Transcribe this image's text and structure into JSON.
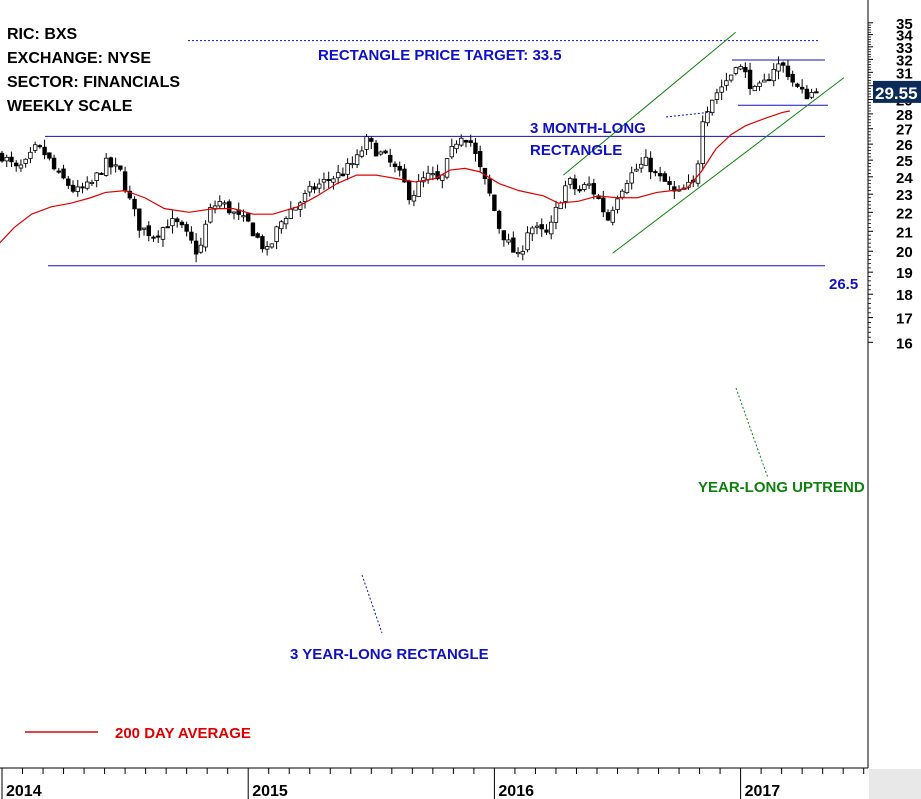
{
  "info": {
    "ric": "RIC: BXS",
    "exchange": "EXCHANGE: NYSE",
    "sector": "SECTOR: FINANCIALS",
    "scale": "WEEKLY SCALE"
  },
  "annotations": {
    "price_target": "RECTANGLE PRICE TARGET: 33.5",
    "month_rect_1": "3 MONTH-LONG",
    "month_rect_2": "RECTANGLE",
    "year_rect": "3 YEAR-LONG RECTANGLE",
    "uptrend": "YEAR-LONG UPTREND",
    "level_265": "26.5"
  },
  "legend": {
    "ma_label": "200 DAY AVERAGE"
  },
  "last_price": "29.55",
  "colors": {
    "blue": "#1010c8",
    "green": "#108010",
    "red": "#e00000",
    "price_label_bg": "#0b2a5a"
  },
  "chart_data": {
    "type": "candlestick",
    "y_ticks": [
      16,
      17,
      18,
      19,
      20,
      21,
      22,
      23,
      24,
      25,
      26,
      27,
      28,
      29,
      30,
      31,
      32,
      33,
      34,
      35
    ],
    "x_labels": [
      "2014",
      "2015",
      "2016",
      "2017"
    ],
    "ylim": [
      15.3,
      35.9
    ],
    "log_scale": true,
    "x_range": [
      2014.0,
      2017.5
    ],
    "levels": {
      "rect_top": 26.5,
      "rect_bottom": 19.3,
      "target": 33.5,
      "short_rect_top": 31.95,
      "short_rect_bottom": 28.6
    },
    "channel": {
      "upper": [
        [
          2016.28,
          24.1
        ],
        [
          2016.98,
          34.2
        ]
      ],
      "lower": [
        [
          2016.48,
          19.9
        ],
        [
          2017.42,
          30.6
        ]
      ]
    },
    "ma_200": [
      [
        2013.99,
        20.4
      ],
      [
        2014.05,
        21.2
      ],
      [
        2014.12,
        21.9
      ],
      [
        2014.2,
        22.3
      ],
      [
        2014.28,
        22.5
      ],
      [
        2014.36,
        22.8
      ],
      [
        2014.42,
        23.1
      ],
      [
        2014.5,
        23.2
      ],
      [
        2014.58,
        22.8
      ],
      [
        2014.66,
        22.2
      ],
      [
        2014.76,
        22.0
      ],
      [
        2014.86,
        22.2
      ],
      [
        2014.94,
        22.2
      ],
      [
        2015.02,
        21.9
      ],
      [
        2015.1,
        21.9
      ],
      [
        2015.2,
        22.3
      ],
      [
        2015.28,
        22.9
      ],
      [
        2015.36,
        23.6
      ],
      [
        2015.44,
        24.1
      ],
      [
        2015.52,
        24.1
      ],
      [
        2015.6,
        23.9
      ],
      [
        2015.68,
        23.7
      ],
      [
        2015.76,
        23.9
      ],
      [
        2015.82,
        24.4
      ],
      [
        2015.88,
        24.5
      ],
      [
        2015.94,
        24.3
      ],
      [
        2016.02,
        23.6
      ],
      [
        2016.1,
        23.2
      ],
      [
        2016.2,
        22.9
      ],
      [
        2016.26,
        22.5
      ],
      [
        2016.34,
        22.6
      ],
      [
        2016.42,
        22.9
      ],
      [
        2016.5,
        22.8
      ],
      [
        2016.58,
        22.8
      ],
      [
        2016.66,
        23.1
      ],
      [
        2016.72,
        23.2
      ],
      [
        2016.78,
        23.3
      ],
      [
        2016.84,
        24.3
      ],
      [
        2016.9,
        25.7
      ],
      [
        2016.96,
        26.6
      ],
      [
        2017.02,
        27.2
      ],
      [
        2017.1,
        27.7
      ],
      [
        2017.17,
        28.1
      ],
      [
        2017.2,
        28.2
      ]
    ],
    "price_path": [
      [
        2014.0,
        25.3
      ],
      [
        2014.06,
        24.4
      ],
      [
        2014.1,
        24.8
      ],
      [
        2014.14,
        25.8
      ],
      [
        2014.18,
        25.3
      ],
      [
        2014.22,
        24.2
      ],
      [
        2014.26,
        23.7
      ],
      [
        2014.3,
        23.1
      ],
      [
        2014.36,
        23.5
      ],
      [
        2014.42,
        24.8
      ],
      [
        2014.48,
        24.3
      ],
      [
        2014.52,
        22.6
      ],
      [
        2014.56,
        21.2
      ],
      [
        2014.62,
        20.8
      ],
      [
        2014.68,
        21.5
      ],
      [
        2014.72,
        21.3
      ],
      [
        2014.76,
        20.6
      ],
      [
        2014.8,
        19.8
      ],
      [
        2014.84,
        22.0
      ],
      [
        2014.88,
        22.6
      ],
      [
        2014.92,
        22.2
      ],
      [
        2014.96,
        21.7
      ],
      [
        2015.0,
        21.4
      ],
      [
        2015.04,
        20.6
      ],
      [
        2015.08,
        19.9
      ],
      [
        2015.12,
        21.2
      ],
      [
        2015.16,
        22.0
      ],
      [
        2015.2,
        22.4
      ],
      [
        2015.26,
        23.3
      ],
      [
        2015.32,
        23.8
      ],
      [
        2015.38,
        24.2
      ],
      [
        2015.44,
        25.0
      ],
      [
        2015.48,
        26.2
      ],
      [
        2015.52,
        25.6
      ],
      [
        2015.56,
        25.1
      ],
      [
        2015.62,
        24.0
      ],
      [
        2015.66,
        22.8
      ],
      [
        2015.7,
        23.7
      ],
      [
        2015.74,
        24.1
      ],
      [
        2015.78,
        23.6
      ],
      [
        2015.82,
        25.3
      ],
      [
        2015.86,
        26.7
      ],
      [
        2015.9,
        26.3
      ],
      [
        2015.94,
        24.5
      ],
      [
        2015.98,
        23.0
      ],
      [
        2016.02,
        21.2
      ],
      [
        2016.06,
        20.3
      ],
      [
        2016.1,
        19.6
      ],
      [
        2016.14,
        21.3
      ],
      [
        2016.18,
        21.0
      ],
      [
        2016.22,
        20.8
      ],
      [
        2016.26,
        22.5
      ],
      [
        2016.3,
        23.8
      ],
      [
        2016.34,
        23.1
      ],
      [
        2016.38,
        23.6
      ],
      [
        2016.42,
        22.8
      ],
      [
        2016.46,
        21.6
      ],
      [
        2016.5,
        23.0
      ],
      [
        2016.54,
        23.9
      ],
      [
        2016.58,
        24.5
      ],
      [
        2016.62,
        24.9
      ],
      [
        2016.66,
        24.0
      ],
      [
        2016.7,
        23.6
      ],
      [
        2016.74,
        22.9
      ],
      [
        2016.78,
        23.4
      ],
      [
        2016.82,
        23.6
      ],
      [
        2016.84,
        27.6
      ],
      [
        2016.88,
        29.0
      ],
      [
        2016.92,
        29.9
      ],
      [
        2016.96,
        30.8
      ],
      [
        2016.98,
        31.8
      ],
      [
        2017.02,
        30.8
      ],
      [
        2017.06,
        29.5
      ],
      [
        2017.1,
        30.2
      ],
      [
        2017.14,
        31.6
      ],
      [
        2017.18,
        31.4
      ],
      [
        2017.22,
        30.0
      ],
      [
        2017.26,
        29.3
      ],
      [
        2017.3,
        29.55
      ]
    ]
  }
}
